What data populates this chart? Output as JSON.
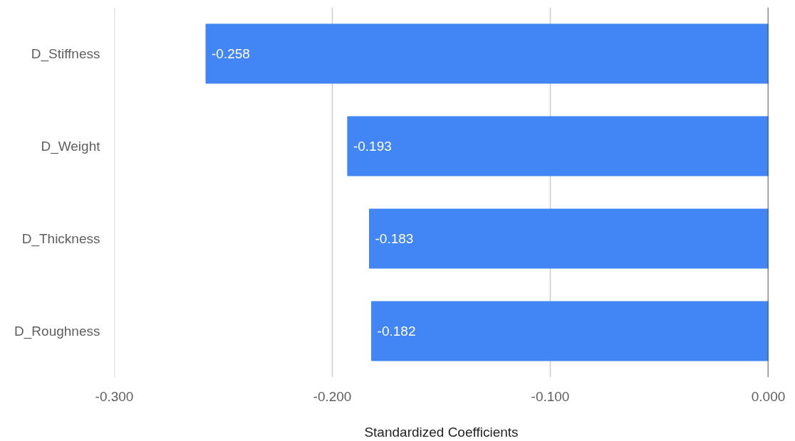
{
  "chart_data": {
    "type": "bar",
    "orientation": "horizontal",
    "xlabel": "Standardized Coefficients",
    "categories": [
      "D_Stiffness",
      "D_Weight",
      "D_Thickness",
      "D_Roughness"
    ],
    "values": [
      -0.258,
      -0.193,
      -0.183,
      -0.182
    ],
    "color": "#4285f4",
    "xlim": [
      -0.3,
      0
    ],
    "xticks": [
      {
        "value": -0.3,
        "label": "-0.300"
      },
      {
        "value": -0.2,
        "label": "-0.200"
      },
      {
        "value": -0.1,
        "label": "-0.100"
      },
      {
        "value": 0,
        "label": "0.000"
      }
    ],
    "grid": "x",
    "data_labels": true
  }
}
